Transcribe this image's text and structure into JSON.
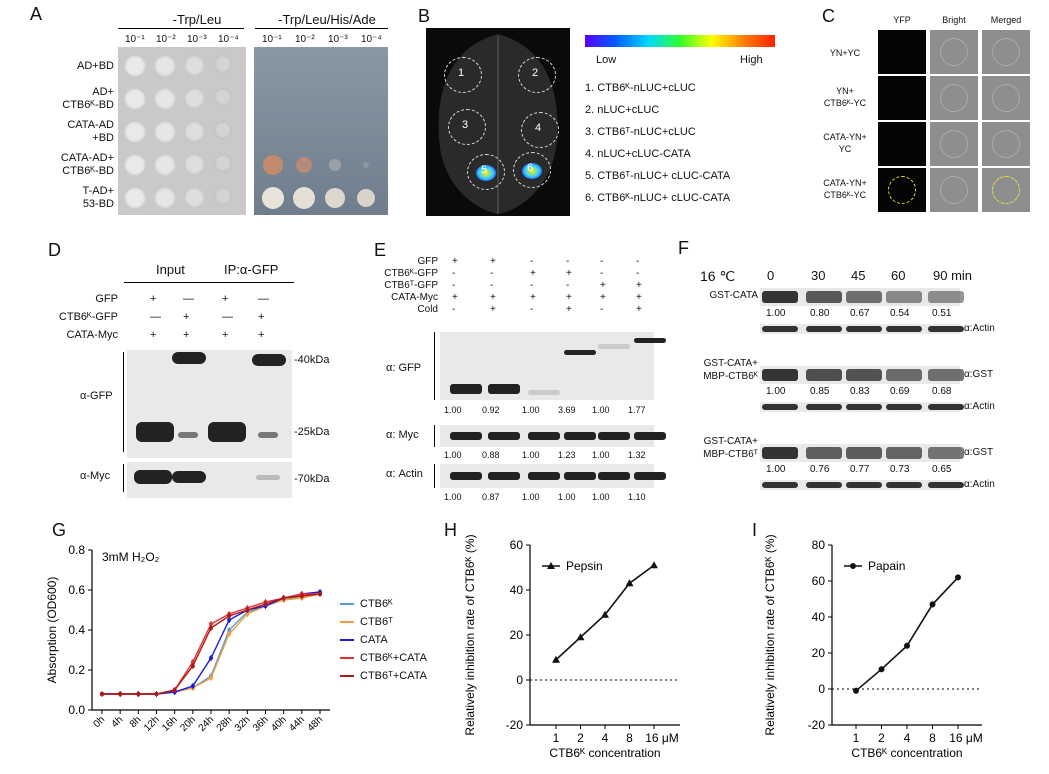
{
  "panelA": {
    "letter": "A",
    "header_left": "-Trp/Leu",
    "header_right": "-Trp/Leu/His/Ade",
    "dilutions": [
      "10⁻¹",
      "10⁻²",
      "10⁻³",
      "10⁻⁴"
    ],
    "rows": [
      {
        "l1": "AD+BD",
        "l2": ""
      },
      {
        "l1": "AD+",
        "l2": "CTB6ᴷ-BD"
      },
      {
        "l1": "CATA-AD",
        "l2": "+BD"
      },
      {
        "l1": "CATA-AD+",
        "l2": "CTB6ᴷ-BD"
      },
      {
        "l1": "T-AD+",
        "l2": "53-BD"
      }
    ]
  },
  "panelB": {
    "letter": "B",
    "scale_low": "Low",
    "scale_high": "High",
    "spots": [
      "1",
      "2",
      "3",
      "4",
      "5",
      "6"
    ],
    "legend": [
      "1. CTB6ᴷ-nLUC+cLUC",
      "2. nLUC+cLUC",
      "3. CTB6ᵀ-nLUC+cLUC",
      "4. nLUC+cLUC-CATA",
      "5. CTB6ᵀ-nLUC+ cLUC-CATA",
      "6. CTB6ᴷ-nLUC+ cLUC-CATA"
    ]
  },
  "panelC": {
    "letter": "C",
    "cols": [
      "YFP",
      "Bright",
      "Merged"
    ],
    "rows": [
      {
        "l1": "YN+YC",
        "l2": ""
      },
      {
        "l1": "YN+",
        "l2": "CTB6ᴷ-YC"
      },
      {
        "l1": "CATA-YN+",
        "l2": "YC"
      },
      {
        "l1": "CATA-YN+",
        "l2": "CTB6ᴷ-YC"
      }
    ]
  },
  "panelD": {
    "letter": "D",
    "input": "Input",
    "ip": "IP:α-GFP",
    "rows": [
      {
        "name": "GFP",
        "signs": [
          "+",
          "—",
          "+",
          "—"
        ]
      },
      {
        "name": "CTB6ᴷ-GFP",
        "signs": [
          "—",
          "+",
          "—",
          "+"
        ]
      },
      {
        "name": "CATA-Myc",
        "signs": [
          "+",
          "+",
          "+",
          "+"
        ]
      }
    ],
    "blot1": "α-GFP",
    "blot2": "α-Myc",
    "mw": [
      "-40kDa",
      "-25kDa",
      "-70kDa"
    ]
  },
  "panelE": {
    "letter": "E",
    "rows": [
      {
        "name": "GFP",
        "signs": [
          "+",
          "+",
          "-",
          "-",
          "-",
          "-"
        ]
      },
      {
        "name": "CTB6ᴷ-GFP",
        "signs": [
          "-",
          "-",
          "+",
          "+",
          "-",
          "-"
        ]
      },
      {
        "name": "CTB6ᵀ-GFP",
        "signs": [
          "-",
          "-",
          "-",
          "-",
          "+",
          "+"
        ]
      },
      {
        "name": "CATA-Myc",
        "signs": [
          "+",
          "+",
          "+",
          "+",
          "+",
          "+"
        ]
      },
      {
        "name": "Cold",
        "signs": [
          "-",
          "+",
          "-",
          "+",
          "-",
          "+"
        ]
      }
    ],
    "blots": [
      {
        "label": "α:  GFP",
        "values": [
          "1.00",
          "0.92",
          "1.00",
          "3.69",
          "1.00",
          "1.77"
        ]
      },
      {
        "label": "α:  Myc",
        "values": [
          "1.00",
          "0.88",
          "1.00",
          "1.23",
          "1.00",
          "1.32"
        ]
      },
      {
        "label": "α:  Actin",
        "values": [
          "1.00",
          "0.87",
          "1.00",
          "1.00",
          "1.00",
          "1.10"
        ]
      }
    ]
  },
  "panelF": {
    "letter": "F",
    "temp": "16 ℃",
    "times": [
      "0",
      "30",
      "45",
      "60",
      "90 min"
    ],
    "groups": [
      {
        "l1": "GST-CATA",
        "l2": "",
        "ab": "",
        "values": [
          "1.00",
          "0.80",
          "0.67",
          "0.54",
          "0.51"
        ],
        "actin": "α:Actin"
      },
      {
        "l1": "GST-CATA+",
        "l2": "MBP-CTB6ᴷ",
        "ab": "α:GST",
        "values": [
          "1.00",
          "0.85",
          "0.83",
          "0.69",
          "0.68"
        ],
        "actin": "α:Actin"
      },
      {
        "l1": "GST-CATA+",
        "l2": "MBP-CTB6ᵀ",
        "ab": "α:GST",
        "values": [
          "1.00",
          "0.76",
          "0.77",
          "0.73",
          "0.65"
        ],
        "actin": "α:Actin"
      }
    ]
  },
  "chart_data": [
    {
      "type": "line",
      "panel": "G",
      "annotation": "3mM H₂O₂",
      "ylabel": "Absorption (OD600)",
      "xlabel": "",
      "ylim": [
        0.0,
        0.8
      ],
      "yticks": [
        "0.0",
        "0.2",
        "0.4",
        "0.6",
        "0.8"
      ],
      "x": [
        "0h",
        "4h",
        "8h",
        "12h",
        "16h",
        "20h",
        "24h",
        "28h",
        "32h",
        "36h",
        "40h",
        "44h",
        "48h"
      ],
      "series": [
        {
          "name": "CTB6ᴷ",
          "color": "#5b9bd5",
          "values": [
            0.08,
            0.08,
            0.08,
            0.08,
            0.09,
            0.11,
            0.17,
            0.4,
            0.49,
            0.52,
            0.55,
            0.57,
            0.58
          ]
        },
        {
          "name": "CTB6ᵀ",
          "color": "#f0a040",
          "values": [
            0.08,
            0.08,
            0.08,
            0.08,
            0.09,
            0.11,
            0.16,
            0.38,
            0.48,
            0.52,
            0.55,
            0.56,
            0.58
          ]
        },
        {
          "name": "CATA",
          "color": "#1a1ae0",
          "values": [
            0.08,
            0.08,
            0.08,
            0.08,
            0.09,
            0.12,
            0.26,
            0.45,
            0.5,
            0.52,
            0.56,
            0.58,
            0.59
          ]
        },
        {
          "name": "CTB6ᴷ+CATA",
          "color": "#e03030",
          "values": [
            0.08,
            0.08,
            0.08,
            0.08,
            0.1,
            0.24,
            0.43,
            0.48,
            0.51,
            0.54,
            0.56,
            0.58,
            0.58
          ]
        },
        {
          "name": "CTB6ᵀ+CATA",
          "color": "#b01818",
          "values": [
            0.08,
            0.08,
            0.08,
            0.08,
            0.1,
            0.22,
            0.41,
            0.47,
            0.5,
            0.53,
            0.56,
            0.57,
            0.58
          ]
        }
      ]
    },
    {
      "type": "line",
      "panel": "H",
      "ylabel": "Relatively inhibition rate of CTB6ᴷ (%)",
      "xlabel": "CTB6ᴷ concentration",
      "x": [
        "1",
        "2",
        "4",
        "8",
        "16 μM"
      ],
      "ylim": [
        -20,
        60
      ],
      "yticks": [
        "-20",
        "0",
        "20",
        "40",
        "60"
      ],
      "series": [
        {
          "name": "Pepsin",
          "values": [
            9,
            19,
            29,
            43,
            51
          ]
        }
      ]
    },
    {
      "type": "line",
      "panel": "I",
      "ylabel": "Relatively inhibition rate of CTB6ᴷ (%)",
      "xlabel": "CTB6ᴷ concentration",
      "x": [
        "1",
        "2",
        "4",
        "8",
        "16 μM"
      ],
      "ylim": [
        -20,
        80
      ],
      "yticks": [
        "-20",
        "0",
        "20",
        "40",
        "60",
        "80"
      ],
      "series": [
        {
          "name": "Papain",
          "values": [
            -1,
            11,
            24,
            47,
            62
          ]
        }
      ]
    }
  ],
  "panelG": {
    "letter": "G"
  },
  "panelH": {
    "letter": "H"
  },
  "panelI": {
    "letter": "I"
  }
}
